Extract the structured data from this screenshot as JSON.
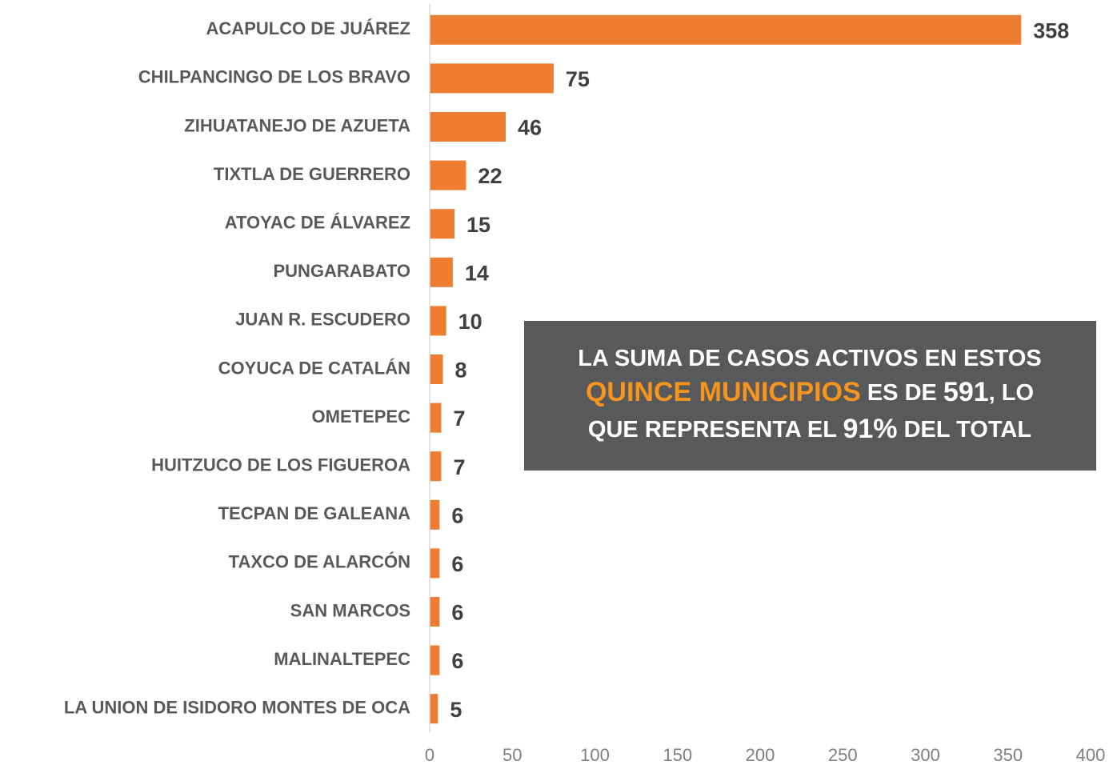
{
  "chart_data": {
    "type": "barh",
    "categories": [
      "ACAPULCO DE JUÁREZ",
      "CHILPANCINGO DE LOS BRAVO",
      "ZIHUATANEJO DE AZUETA",
      "TIXTLA DE GUERRERO",
      "ATOYAC DE ÁLVAREZ",
      "PUNGARABATO",
      "JUAN R. ESCUDERO",
      "COYUCA DE CATALÁN",
      "OMETEPEC",
      "HUITZUCO DE LOS FIGUEROA",
      "TECPAN DE GALEANA",
      "TAXCO DE ALARCÓN",
      "SAN MARCOS",
      "MALINALTEPEC",
      "LA UNION DE ISIDORO MONTES DE OCA"
    ],
    "values": [
      358,
      75,
      46,
      22,
      15,
      14,
      10,
      8,
      7,
      7,
      6,
      6,
      6,
      6,
      5
    ],
    "color": "#ed7d31",
    "xlim": [
      0,
      400
    ],
    "xticks": [
      0,
      50,
      100,
      150,
      200,
      250,
      300,
      350,
      400
    ],
    "annotation": {
      "lines": [
        [
          "LA SUMA DE CASOS ACTIVOS EN ESTOS"
        ],
        [
          "QUINCE MUNICIPIOS",
          " ES DE ",
          "591",
          ", LO"
        ],
        [
          "QUE REPRESENTA EL ",
          "91%",
          " DEL TOTAL"
        ]
      ],
      "box_color": "#58595b",
      "highlight_color": "#f7941d"
    }
  }
}
